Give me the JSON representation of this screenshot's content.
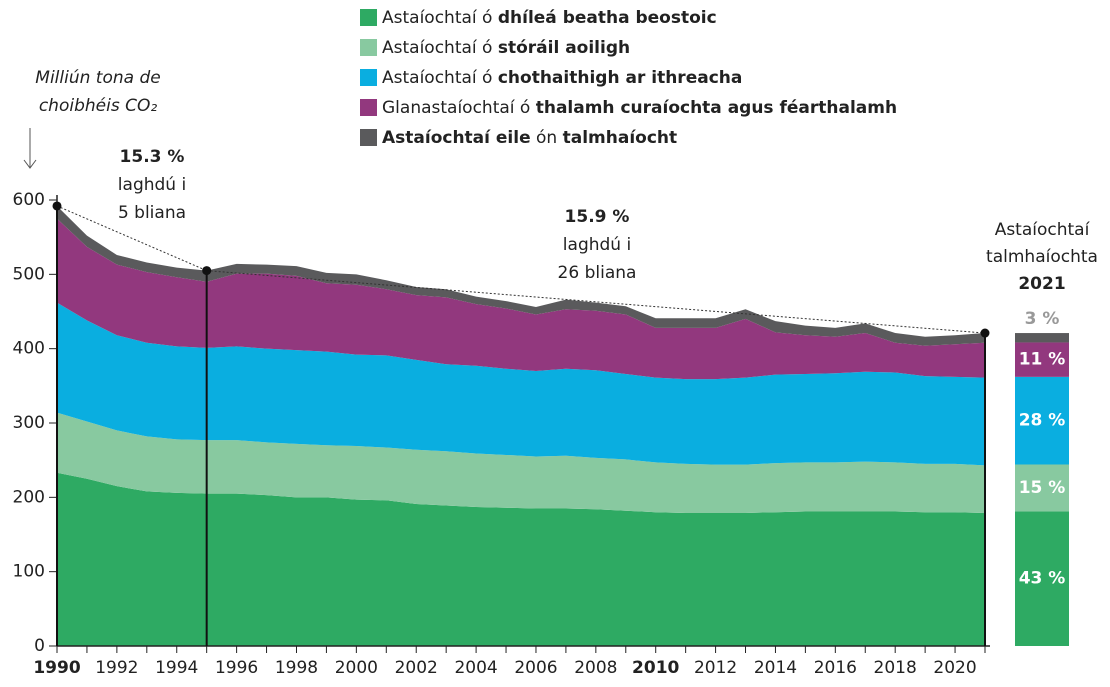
{
  "chart_data": {
    "type": "stacked_area",
    "y_label": [
      "Milliún tona de",
      "choibhéis CO₂"
    ],
    "x": [
      1990,
      1991,
      1992,
      1993,
      1994,
      1995,
      1996,
      1997,
      1998,
      1999,
      2000,
      2001,
      2002,
      2003,
      2004,
      2005,
      2006,
      2007,
      2008,
      2009,
      2010,
      2011,
      2012,
      2013,
      2014,
      2015,
      2016,
      2017,
      2018,
      2019,
      2020,
      2021
    ],
    "xlim": [
      1990,
      2021
    ],
    "xticks": [
      1990,
      1992,
      1994,
      1996,
      1998,
      2000,
      2002,
      2004,
      2006,
      2008,
      2010,
      2012,
      2014,
      2016,
      2018,
      2020
    ],
    "xticks_bold": [
      1990,
      2010
    ],
    "ylim": [
      0,
      600
    ],
    "yticks": [
      0,
      100,
      200,
      300,
      400,
      500,
      600
    ],
    "grid": false,
    "series": [
      {
        "name": [
          {
            "text": "Astaíochtaí ó ",
            "bold": false
          },
          {
            "text": "dhíleá beatha beostoic",
            "bold": true
          }
        ],
        "color": "#2eaa63",
        "values": [
          233,
          225,
          215,
          208,
          206,
          205,
          205,
          203,
          200,
          200,
          197,
          196,
          191,
          189,
          187,
          186,
          185,
          185,
          184,
          182,
          180,
          179,
          179,
          179,
          180,
          181,
          181,
          181,
          181,
          180,
          180,
          179
        ]
      },
      {
        "name": [
          {
            "text": "Astaíochtaí ó ",
            "bold": false
          },
          {
            "text": "stóráil aoiligh",
            "bold": true
          }
        ],
        "color": "#88c9a0",
        "values": [
          81,
          77,
          75,
          74,
          72,
          72,
          72,
          71,
          72,
          70,
          72,
          71,
          73,
          73,
          72,
          71,
          70,
          71,
          69,
          69,
          67,
          66,
          65,
          65,
          66,
          66,
          66,
          67,
          66,
          65,
          65,
          64
        ]
      },
      {
        "name": [
          {
            "text": "Astaíochtaí ó ",
            "bold": false
          },
          {
            "text": "chothaithigh ar ithreacha",
            "bold": true
          }
        ],
        "color": "#0aaee0",
        "values": [
          148,
          136,
          128,
          126,
          125,
          124,
          126,
          126,
          126,
          126,
          123,
          124,
          121,
          117,
          118,
          116,
          115,
          117,
          118,
          115,
          114,
          114,
          115,
          117,
          119,
          119,
          120,
          121,
          121,
          118,
          117,
          118
        ]
      },
      {
        "name": [
          {
            "text": "Glanastaíochtaí ó ",
            "bold": false
          },
          {
            "text": "thalamh curaíochta agus féarthalamh",
            "bold": true
          }
        ],
        "color": "#92387e",
        "values": [
          113,
          99,
          95,
          95,
          93,
          89,
          98,
          101,
          100,
          92,
          94,
          89,
          87,
          90,
          83,
          81,
          76,
          80,
          80,
          80,
          67,
          69,
          69,
          79,
          57,
          52,
          49,
          52,
          40,
          41,
          44,
          47
        ]
      },
      {
        "name": [
          {
            "text": "Astaíochtaí eile",
            "bold": true
          },
          {
            "text": " ón ",
            "bold": false
          },
          {
            "text": "talmhaíocht",
            "bold": true
          }
        ],
        "color": "#5a5a5c",
        "values": [
          17,
          15,
          13,
          13,
          13,
          15,
          13,
          12,
          13,
          14,
          14,
          12,
          11,
          11,
          10,
          10,
          10,
          13,
          11,
          11,
          13,
          13,
          13,
          13,
          15,
          13,
          12,
          13,
          13,
          12,
          12,
          13
        ]
      }
    ],
    "annotations": [
      {
        "lines": [
          "15.3 %",
          "laghdú i",
          "5 bliana"
        ]
      },
      {
        "lines": [
          "15.9 %",
          "laghdú i",
          "26 bliana"
        ]
      }
    ],
    "bar_2021": {
      "title": [
        "Astaíochtaí",
        "talmhaíochta",
        "2021"
      ],
      "values": [
        43,
        15,
        28,
        11,
        3
      ],
      "value_labels": [
        "43 %",
        "15 %",
        "28 %",
        "11 %",
        "3 %"
      ]
    }
  }
}
